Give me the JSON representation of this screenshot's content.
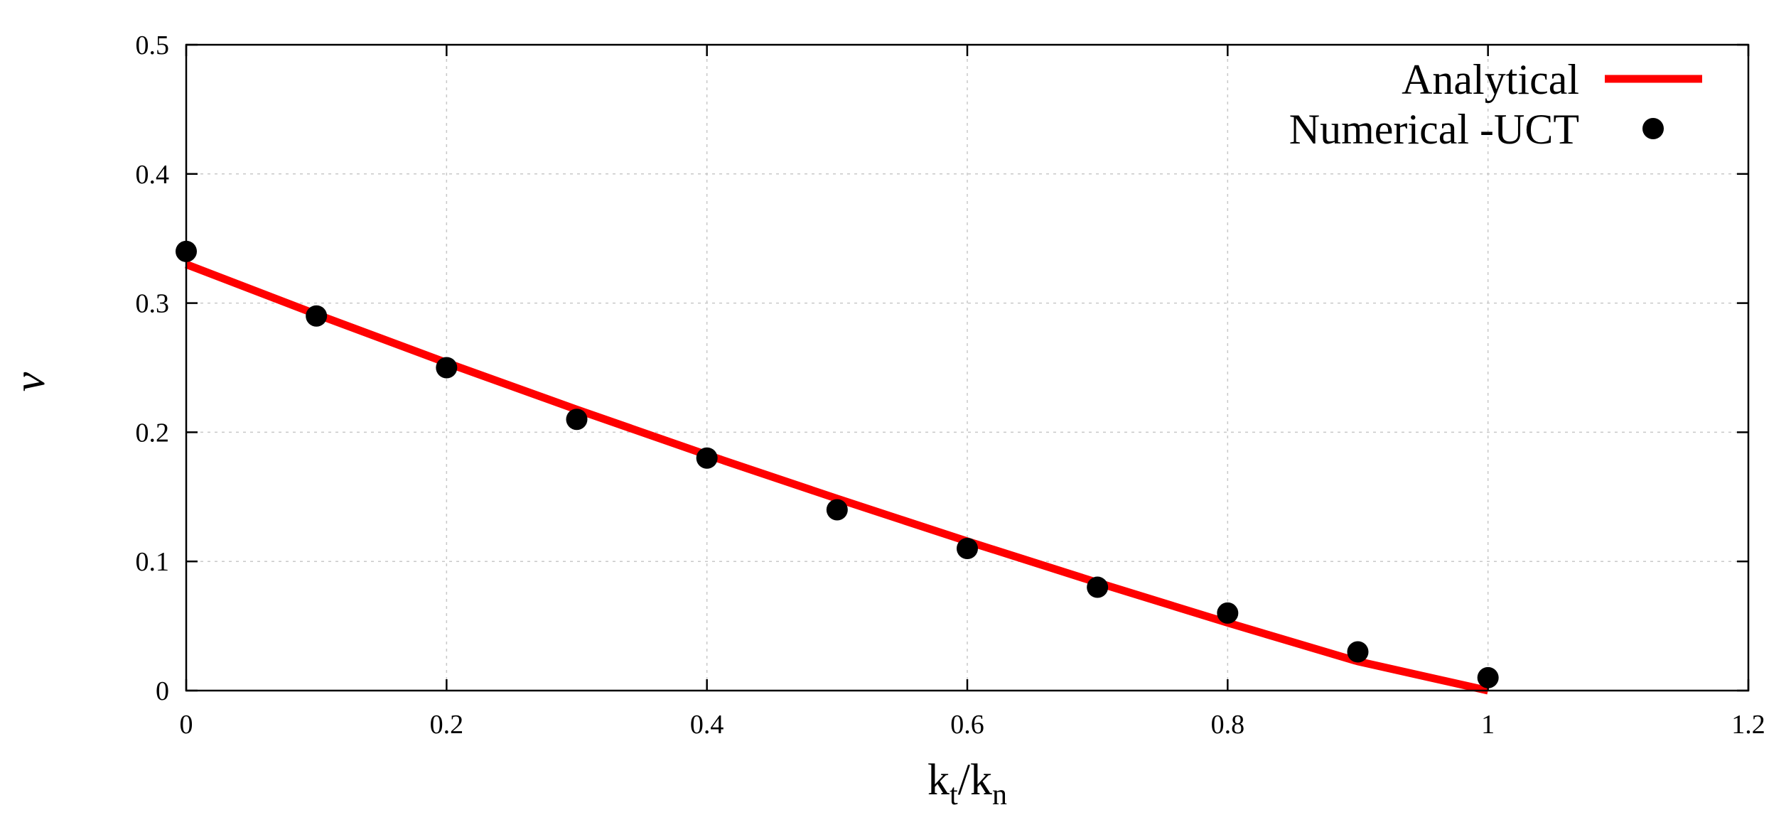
{
  "chart_data": {
    "type": "line",
    "title": "",
    "xlabel": {
      "main": "k",
      "sub1": "t",
      "sep": "/",
      "main2": "k",
      "sub2": "n"
    },
    "ylabel": "ν",
    "xlim": [
      0,
      1.2
    ],
    "ylim": [
      0,
      0.5
    ],
    "xticks": [
      0,
      0.2,
      0.4,
      0.6,
      0.8,
      1,
      1.2
    ],
    "xtick_labels": [
      "0",
      "0.2",
      "0.4",
      "0.6",
      "0.8",
      "1",
      "1.2"
    ],
    "yticks": [
      0,
      0.1,
      0.2,
      0.3,
      0.4,
      0.5
    ],
    "ytick_labels": [
      "0",
      "0.1",
      "0.2",
      "0.3",
      "0.4",
      "0.5"
    ],
    "grid": true,
    "legend_position": "top-right",
    "series": [
      {
        "name": "Analytical",
        "kind": "line",
        "color": "#ff0000",
        "x": [
          0,
          0.1,
          0.2,
          0.3,
          0.4,
          0.5,
          0.6,
          0.7,
          0.8,
          0.9,
          1.0
        ],
        "y": [
          0.33,
          0.2913,
          0.2538,
          0.2176,
          0.1825,
          0.1486,
          0.1156,
          0.0836,
          0.0525,
          0.0226,
          0.0
        ]
      },
      {
        "name": "Numerical -UCT",
        "kind": "scatter",
        "color": "#000000",
        "x": [
          0,
          0.1,
          0.2,
          0.3,
          0.4,
          0.5,
          0.6,
          0.7,
          0.8,
          0.9,
          1.0
        ],
        "y": [
          0.34,
          0.29,
          0.25,
          0.21,
          0.18,
          0.14,
          0.11,
          0.08,
          0.06,
          0.03,
          0.01
        ]
      }
    ]
  }
}
